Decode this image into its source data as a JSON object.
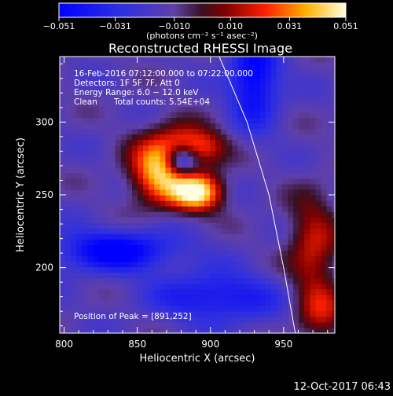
{
  "chart_data": {
    "type": "heatmap",
    "title": "Reconstructed RHESSI Image",
    "xlabel": "Heliocentric X (arcsec)",
    "ylabel": "Heliocentric Y (arcsec)",
    "xlim": [
      797,
      985
    ],
    "ylim": [
      155,
      345
    ],
    "x_ticks": [
      800,
      850,
      900,
      950
    ],
    "y_ticks": [
      200,
      250,
      300
    ],
    "colorbar": {
      "min": -0.051,
      "max": 0.051,
      "tick_values": [
        -0.051,
        -0.031,
        -0.01,
        0.01,
        0.031,
        0.051
      ],
      "tick_labels": [
        "−0.051",
        "−0.031",
        "−0.010",
        "0.010",
        "0.031",
        "0.051"
      ],
      "units": "(photons cm⁻² s⁻¹ asec⁻²)"
    },
    "annotations": {
      "time_range": "16-Feb-2016 07:12:00.000 to 07:22:00.000",
      "detectors": "Detectors: 1F 5F 7F, Att 0",
      "energy_range": "Energy Range: 6.0 − 12.0 keV",
      "method": "Clean",
      "total_counts": "Total counts: 5.54E+04",
      "peak_position": "Position of Peak = [891,252]"
    },
    "peak": [
      891,
      252
    ],
    "sources": [
      {
        "x": 866,
        "y": 268,
        "sx": 14,
        "sy": 16,
        "amp": 0.06
      },
      {
        "x": 891,
        "y": 252,
        "sx": 12,
        "sy": 9,
        "amp": 0.062
      },
      {
        "x": 895,
        "y": 283,
        "sx": 12,
        "sy": 9,
        "amp": 0.033
      },
      {
        "x": 880,
        "y": 285,
        "sx": 10,
        "sy": 10,
        "amp": 0.02
      },
      {
        "x": 880,
        "y": 274,
        "sx": 8,
        "sy": 8,
        "amp": -0.055
      },
      {
        "x": 835,
        "y": 212,
        "sx": 30,
        "sy": 10,
        "amp": -0.04
      },
      {
        "x": 930,
        "y": 330,
        "sx": 12,
        "sy": 22,
        "amp": -0.04
      },
      {
        "x": 905,
        "y": 180,
        "sx": 30,
        "sy": 12,
        "amp": -0.03
      },
      {
        "x": 970,
        "y": 215,
        "sx": 12,
        "sy": 25,
        "amp": 0.03
      },
      {
        "x": 975,
        "y": 170,
        "sx": 12,
        "sy": 15,
        "amp": 0.025
      }
    ],
    "solar_limb": [
      [
        906,
        345
      ],
      [
        925,
        300
      ],
      [
        940,
        250
      ],
      [
        950,
        200
      ],
      [
        958,
        155
      ]
    ]
  },
  "footer_timestamp": "12-Oct-2017 06:43"
}
